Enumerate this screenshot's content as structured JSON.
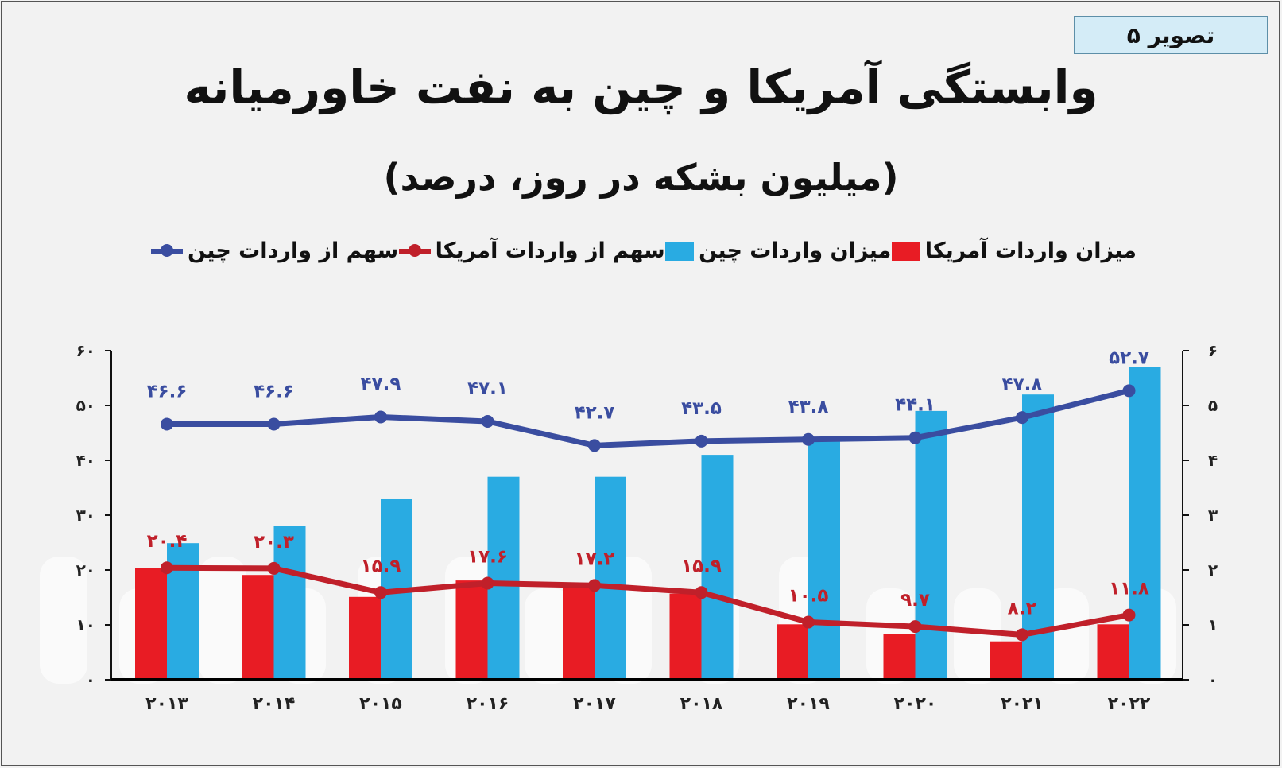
{
  "badge": "تصویر ۵",
  "watermark": "farhikhtegan",
  "chart_data": {
    "type": "bar+line",
    "title": "وابستگی آمریکا و چین به نفت خاورمیانه",
    "subtitle": "(میلیون بشکه در روز، درصد)",
    "categories": [
      2013,
      2014,
      2015,
      2016,
      2017,
      2018,
      2019,
      2020,
      2021,
      2022
    ],
    "category_labels": [
      "۲۰۱۳",
      "۲۰۱۴",
      "۲۰۱۵",
      "۲۰۱۶",
      "۲۰۱۷",
      "۲۰۱۸",
      "۲۰۱۹",
      "۲۰۲۰",
      "۲۰۲۱",
      "۲۰۲۲"
    ],
    "left_axis": {
      "ylim": [
        0,
        60
      ],
      "ticks": [
        "۰",
        "۱۰",
        "۲۰",
        "۳۰",
        "۴۰",
        "۵۰",
        "۶۰"
      ]
    },
    "right_axis": {
      "ylim": [
        0,
        6
      ],
      "ticks": [
        "۰",
        "۱",
        "۲",
        "۳",
        "۴",
        "۵",
        "۶"
      ]
    },
    "legend_position": "top",
    "grid": false,
    "series": [
      {
        "name": "میزان واردات آمریکا",
        "kind": "bar",
        "axis": "right",
        "color": "#e81c24",
        "values": [
          2.03,
          1.91,
          1.51,
          1.81,
          1.77,
          1.57,
          1.01,
          0.83,
          0.7,
          1.01
        ]
      },
      {
        "name": "میزان واردات چین",
        "kind": "bar",
        "axis": "right",
        "color": "#29abe2",
        "values": [
          2.49,
          2.8,
          3.29,
          3.7,
          3.7,
          4.1,
          4.42,
          4.9,
          5.2,
          5.71
        ]
      },
      {
        "name": "سهم از واردات آمریکا",
        "kind": "line",
        "axis": "left",
        "color": "#c0202a",
        "values": [
          20.4,
          20.3,
          15.9,
          17.6,
          17.2,
          15.9,
          10.5,
          9.7,
          8.2,
          11.8
        ],
        "labels": [
          "۲۰.۴",
          "۲۰.۳",
          "۱۵.۹",
          "۱۷.۶",
          "۱۷.۲",
          "۱۵.۹",
          "۱۰.۵",
          "۹.۷",
          "۸.۲",
          "۱۱.۸"
        ]
      },
      {
        "name": "سهم از واردات چین",
        "kind": "line",
        "axis": "left",
        "color": "#3a4da0",
        "values": [
          46.6,
          46.6,
          47.9,
          47.1,
          42.7,
          43.5,
          43.8,
          44.1,
          47.8,
          52.7
        ],
        "labels": [
          "۴۶.۶",
          "۴۶.۶",
          "۴۷.۹",
          "۴۷.۱",
          "۴۲.۷",
          "۴۳.۵",
          "۴۳.۸",
          "۴۴.۱",
          "۴۷.۸",
          "۵۲.۷"
        ]
      }
    ]
  }
}
